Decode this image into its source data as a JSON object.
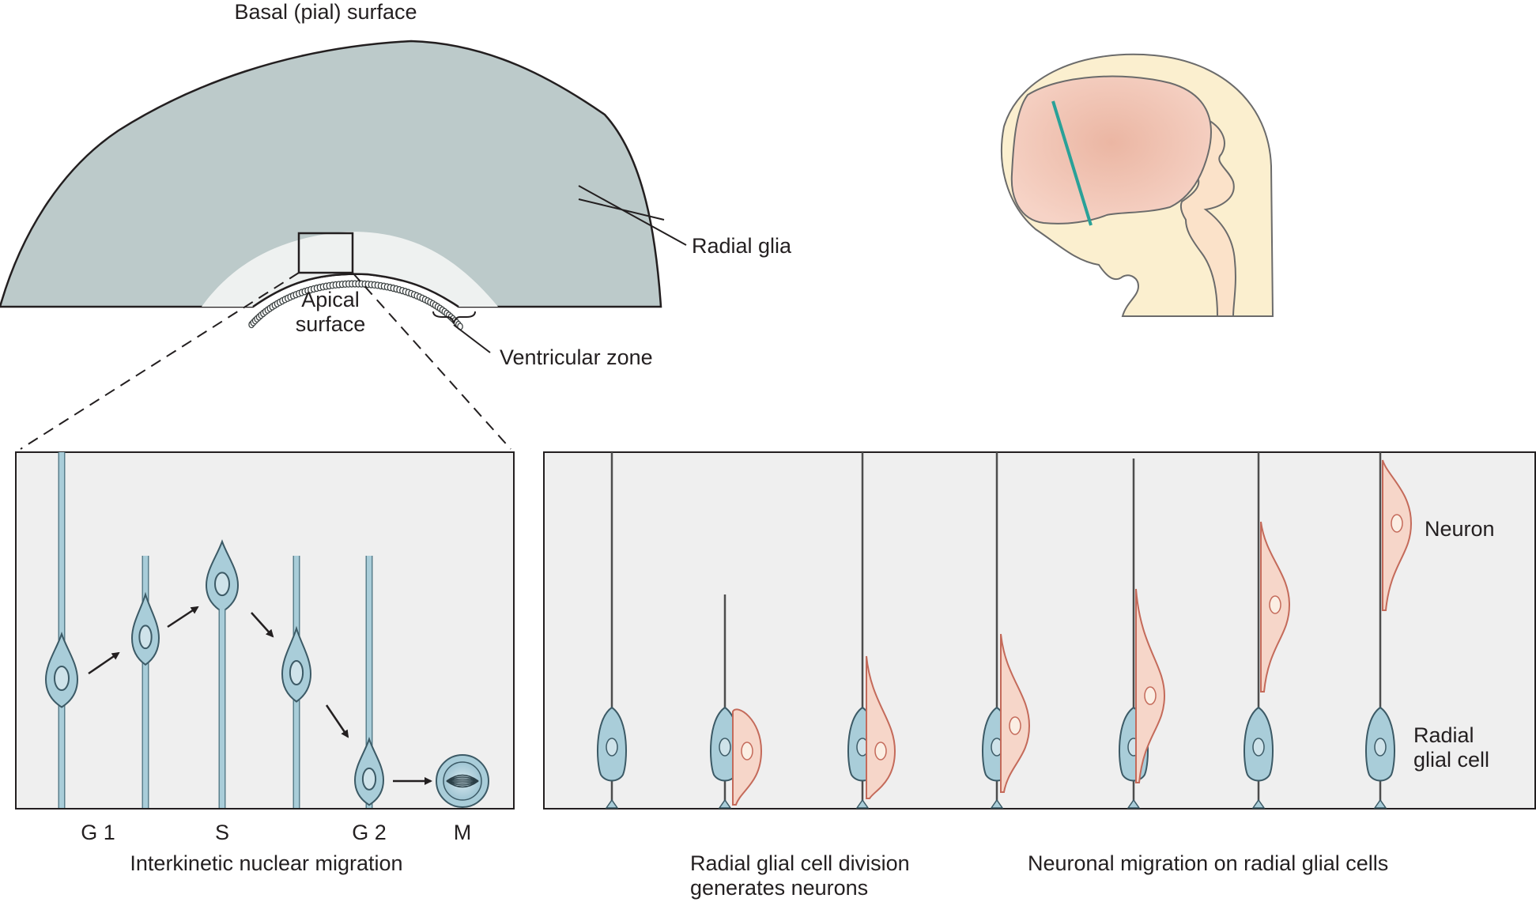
{
  "top": {
    "basal_surface": "Basal (pial) surface",
    "radial_glia": "Radial glia",
    "apical_surface_line1": "Apical",
    "apical_surface_line2": "surface",
    "ventricular_zone": "Ventricular zone"
  },
  "left_panel": {
    "stages": [
      "G 1",
      "S",
      "G 2",
      "M"
    ],
    "caption": "Interkinetic nuclear migration"
  },
  "right_panel": {
    "neuron": "Neuron",
    "radial_glial_cell_line1": "Radial",
    "radial_glial_cell_line2": "glial cell",
    "caption_division_line1": "Radial glial cell division",
    "caption_division_line2": "generates neurons",
    "caption_migration": "Neuronal migration on radial glial cells"
  },
  "colors": {
    "cortex_fill": "#bccaca",
    "ventricular_zone_fill": "#eef1f0",
    "panel_fill": "#efefef",
    "glia_cell": "#a9cdd9",
    "neuron_cell": "#f6d6c9",
    "brain_fill": "#f2c9b9",
    "embryo_fill": "#fbefcf",
    "section_line": "#2aa198"
  }
}
